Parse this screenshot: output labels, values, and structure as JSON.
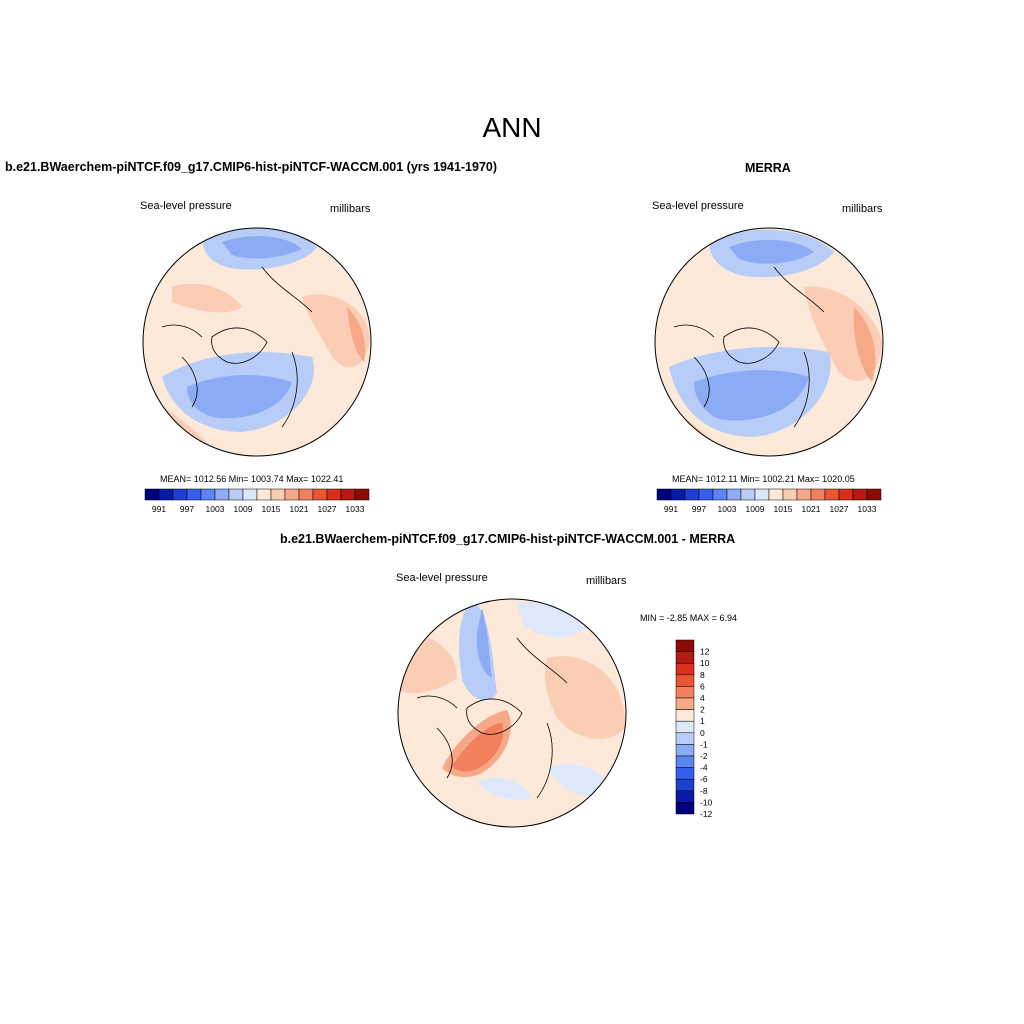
{
  "main_title": "ANN",
  "panels": {
    "model": {
      "title": "b.e21.BWaerchem-piNTCF.f09_g17.CMIP6-hist-piNTCF-WACCM.001 (yrs 1941-1970)",
      "left_label": "Sea-level pressure",
      "right_label": "millibars",
      "stats": "MEAN= 1012.56  Min= 1003.74  Max= 1022.41"
    },
    "obs": {
      "title": "MERRA",
      "left_label": "Sea-level pressure",
      "right_label": "millibars",
      "stats": "MEAN= 1012.11  Min= 1002.21  Max= 1020.05"
    },
    "diff": {
      "title": "b.e21.BWaerchem-piNTCF.f09_g17.CMIP6-hist-piNTCF-WACCM.001 - MERRA",
      "left_label": "Sea-level pressure",
      "right_label": "millibars",
      "minmax": "MIN =  -2.85 MAX =   6.94"
    }
  },
  "colorbar_abs": {
    "colors": [
      "#00007a",
      "#0a1aa8",
      "#1f3fd1",
      "#3560ef",
      "#5b86f2",
      "#8cabf5",
      "#b7cdf8",
      "#dde9fb",
      "#fde9d9",
      "#fbcdb5",
      "#f7a888",
      "#f2805c",
      "#eb5532",
      "#d8301c",
      "#b41a10",
      "#8a0a04"
    ],
    "tick_labels": [
      "991",
      "997",
      "1003",
      "1009",
      "1015",
      "1021",
      "1027",
      "1033"
    ]
  },
  "colorbar_diff": {
    "colors": [
      "#8a0a04",
      "#b41a10",
      "#d8301c",
      "#eb5532",
      "#f2805c",
      "#f7a888",
      "#fde9d9",
      "#dde9fb",
      "#b7cdf8",
      "#8cabf5",
      "#5b86f2",
      "#3560ef",
      "#1f3fd1",
      "#0a1aa8",
      "#00007a"
    ],
    "tick_labels": [
      "12",
      "10",
      "8",
      "6",
      "4",
      "2",
      "1",
      "0",
      "-1",
      "-2",
      "-4",
      "-6",
      "-8",
      "-10",
      "-12"
    ]
  }
}
